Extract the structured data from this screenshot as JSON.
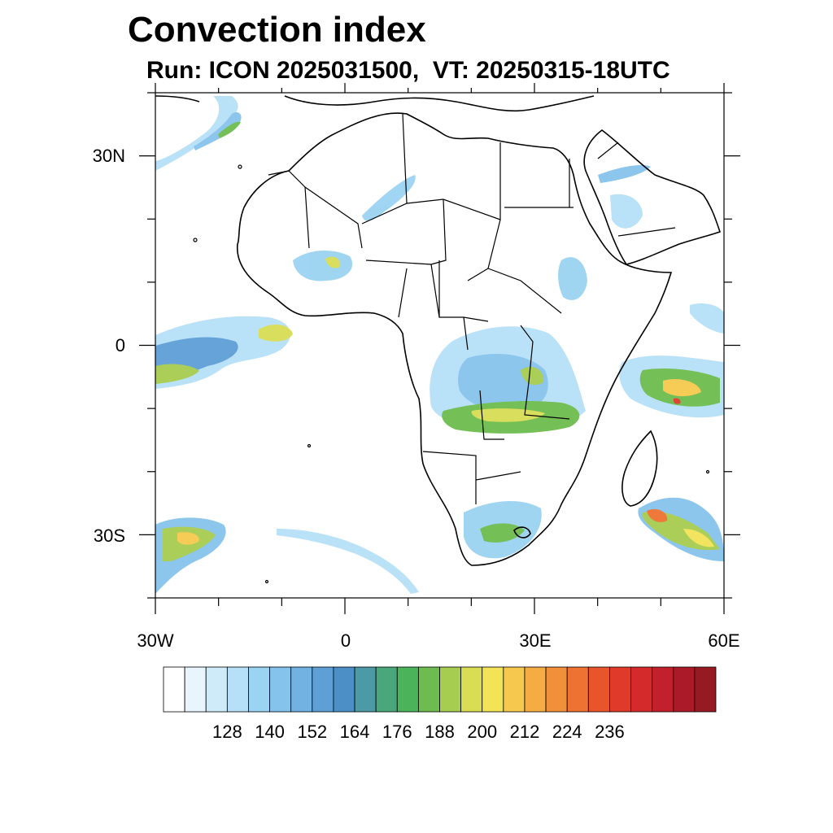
{
  "title": "Convection index",
  "subtitle": "Run: ICON 2025031500,  VT: 20250315-18UTC",
  "map": {
    "lon_range": [
      -30,
      60
    ],
    "lat_range": [
      -40,
      40
    ],
    "lat_tick_labels": [
      "30N",
      "0",
      "30S"
    ],
    "lon_tick_labels": [
      "30W",
      "0",
      "30E",
      "60E"
    ]
  },
  "colorbar": {
    "labels": [
      "128",
      "140",
      "152",
      "164",
      "176",
      "188",
      "200",
      "212",
      "224",
      "236"
    ],
    "colors": [
      "#ffffff",
      "#e8f5fd",
      "#cfeaf9",
      "#b6e0f7",
      "#9bd3f2",
      "#86c3ec",
      "#72b2e3",
      "#5e9fd6",
      "#4b8fc6",
      "#4c9aa6",
      "#4aa77c",
      "#4bb35a",
      "#6ebc4f",
      "#a6cc50",
      "#d8dd54",
      "#f2e357",
      "#f6c94e",
      "#f5ac42",
      "#f28f3a",
      "#ee7231",
      "#e8552b",
      "#e03a2a",
      "#d42a2c",
      "#c1202c",
      "#ab1a28",
      "#961a22"
    ]
  }
}
